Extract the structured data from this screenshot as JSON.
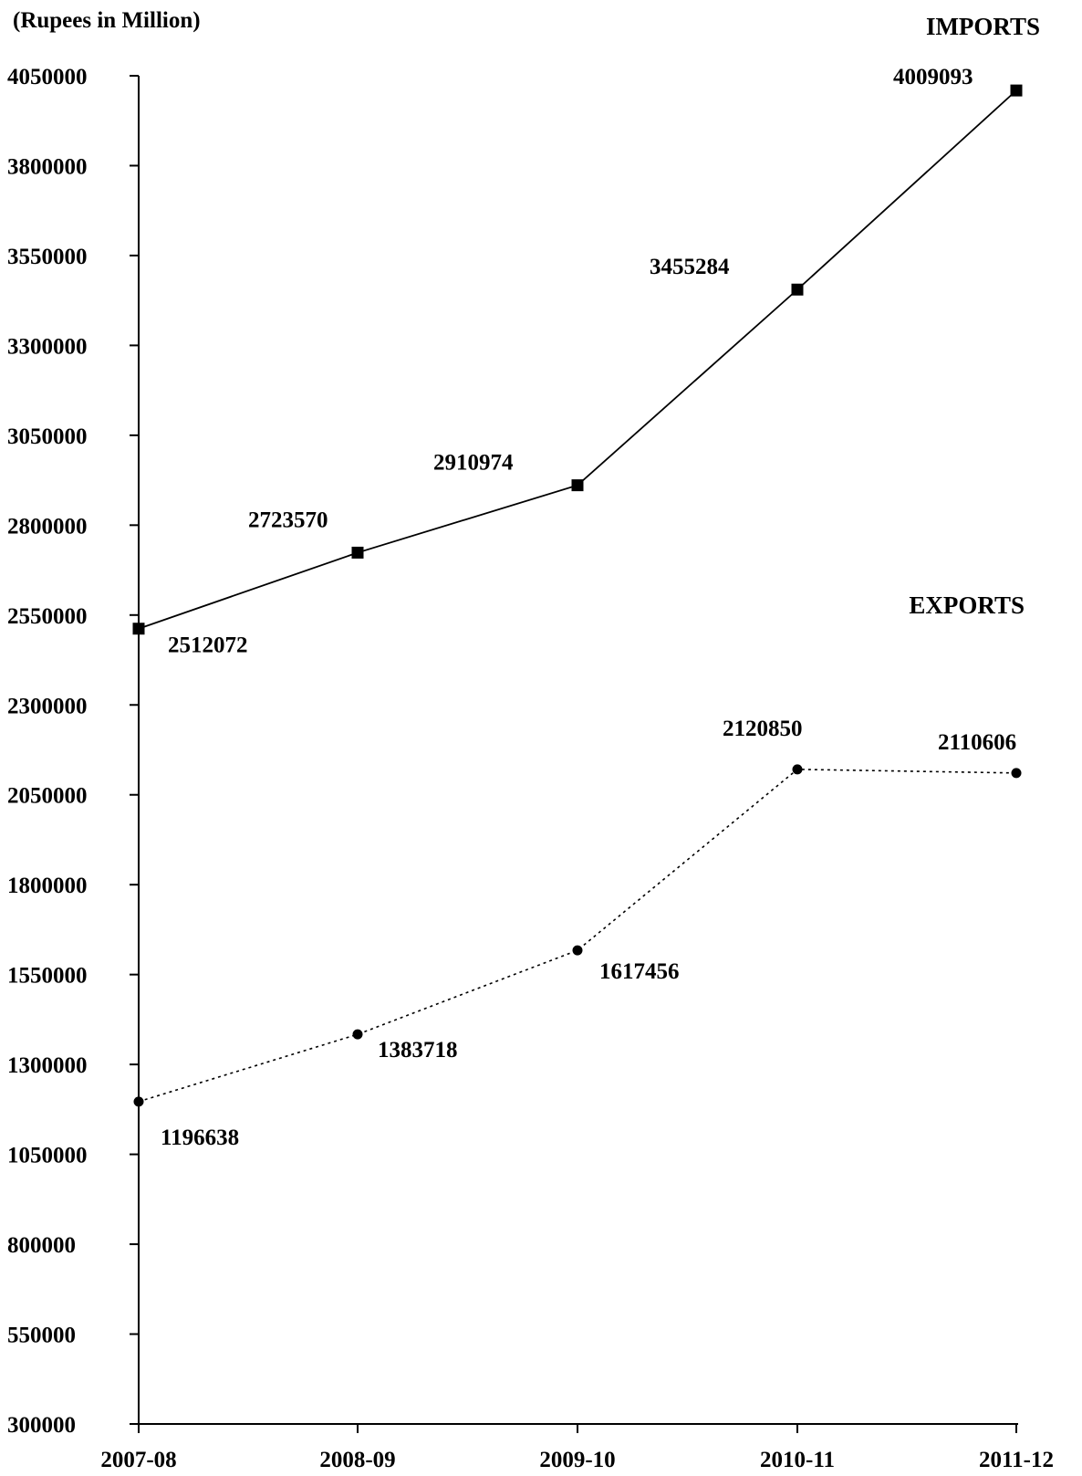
{
  "chart_data": {
    "type": "line",
    "ylabel": "(Rupees in Million)",
    "categories": [
      "2007-08",
      "2008-09",
      "2009-10",
      "2010-11",
      "2011-12"
    ],
    "ylim": [
      300000,
      4050000
    ],
    "yticks": [
      300000,
      550000,
      800000,
      1050000,
      1300000,
      1550000,
      1800000,
      2050000,
      2300000,
      2550000,
      2800000,
      3050000,
      3300000,
      3550000,
      3800000,
      4050000
    ],
    "grid": false,
    "series": [
      {
        "name": "IMPORTS",
        "marker": "square",
        "line_style": "solid",
        "values": [
          2512072,
          2723570,
          2910974,
          3455284,
          4009093
        ],
        "data_labels": [
          "2512072",
          "2723570",
          "2910974",
          "3455284",
          "4009093"
        ]
      },
      {
        "name": "EXPORTS",
        "marker": "circle",
        "line_style": "dotted",
        "values": [
          1196638,
          1383718,
          1617456,
          2120850,
          2110606
        ],
        "data_labels": [
          "1196638",
          "1383718",
          "1617456",
          "2120850",
          "2110606"
        ]
      }
    ]
  }
}
